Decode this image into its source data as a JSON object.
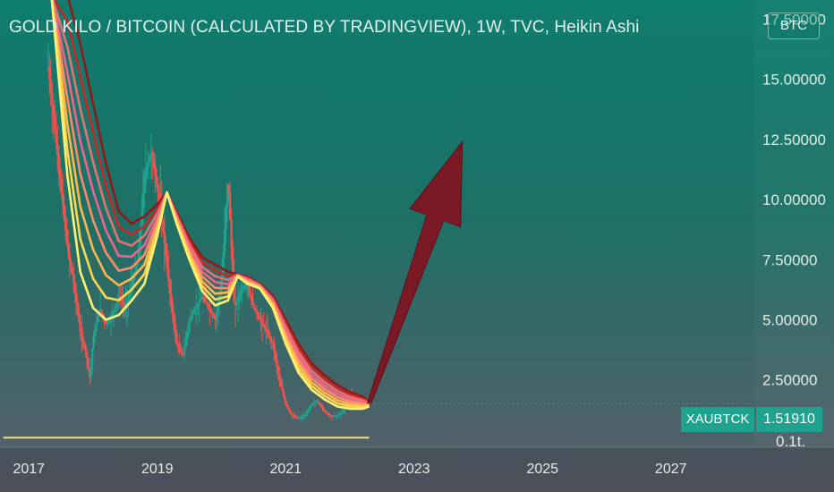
{
  "header": {
    "title": "GOLD KILO / BITCOIN (CALCULATED BY TRADINGVIEW), 1W, TVC, Heikin Ashi",
    "currency": "BTC"
  },
  "price_scale": {
    "symbol": "XAUBTCK",
    "last_price": "1.51910",
    "partial_label": "0.1t."
  },
  "colors": {
    "background_top": "#0f7d6f",
    "background_bottom": "#5d5d6a",
    "up_candle": "#1fa38f",
    "down_candle": "#ef5350",
    "arrow": "#7b1a24",
    "ribbon_fast": "#fff176",
    "ribbon_slow": "#8e1a1a",
    "tag": "#1fa38f"
  },
  "chart_data": {
    "type": "line",
    "style": "heikin-ashi candles with moving-average ribbon",
    "title": "GOLD KILO / BITCOIN (CALCULATED BY TRADINGVIEW), 1W, TVC, Heikin Ashi",
    "xlabel": "",
    "ylabel": "",
    "x_ticks": [
      "2017",
      "2019",
      "2021",
      "2023",
      "2025",
      "2027"
    ],
    "y_ticks": [
      "17.50000",
      "15.00000",
      "12.50000",
      "10.00000",
      "7.50000",
      "5.00000",
      "2.50000"
    ],
    "xlim": [
      2016.55,
      2028.3
    ],
    "ylim": [
      -0.3,
      18.3
    ],
    "grid": false,
    "series": [
      {
        "role": "price",
        "x": [
          2017.3,
          2017.4,
          2017.5,
          2017.6,
          2017.7,
          2017.8,
          2017.9,
          2017.95,
          2018.0,
          2018.1,
          2018.2,
          2018.3,
          2018.4,
          2018.5,
          2018.6,
          2018.7,
          2018.8,
          2018.9,
          2019.0,
          2019.1,
          2019.2,
          2019.3,
          2019.4,
          2019.5,
          2019.6,
          2019.7,
          2019.8,
          2019.9,
          2020.0,
          2020.1,
          2020.2,
          2020.3,
          2020.4,
          2020.5,
          2020.6,
          2020.7,
          2020.8,
          2020.9,
          2021.0,
          2021.1,
          2021.2,
          2021.3,
          2021.4,
          2021.5,
          2021.6,
          2021.7,
          2021.8,
          2021.9,
          2022.0,
          2022.1,
          2022.2,
          2022.3
        ],
        "y": [
          15.5,
          13.0,
          10.5,
          8.0,
          6.5,
          4.5,
          3.5,
          2.5,
          4.2,
          5.5,
          4.8,
          5.2,
          6.0,
          5.5,
          6.5,
          7.5,
          11.0,
          12.0,
          10.5,
          8.5,
          6.0,
          4.0,
          3.5,
          5.0,
          5.5,
          6.0,
          5.5,
          5.0,
          6.5,
          11.0,
          5.5,
          6.2,
          6.5,
          5.5,
          5.0,
          4.5,
          4.0,
          2.5,
          1.5,
          1.0,
          0.9,
          1.0,
          1.5,
          1.6,
          1.2,
          1.0,
          1.0,
          1.2,
          2.0,
          1.7,
          1.6,
          1.5191
        ]
      },
      {
        "role": "ribbon",
        "x": [
          2017.35,
          2017.6,
          2017.8,
          2018.0,
          2018.2,
          2018.4,
          2018.6,
          2018.8,
          2019.0,
          2019.15,
          2019.3,
          2019.5,
          2019.7,
          2019.9,
          2020.1,
          2020.25,
          2020.4,
          2020.6,
          2020.8,
          2021.0,
          2021.2,
          2021.4,
          2021.6,
          2021.8,
          2022.0,
          2022.2,
          2022.3
        ],
        "fast": [
          18.5,
          11.0,
          7.0,
          5.5,
          5.0,
          5.2,
          5.8,
          6.5,
          8.5,
          10.3,
          9.0,
          7.5,
          6.2,
          5.6,
          5.8,
          6.8,
          6.5,
          6.3,
          5.5,
          4.0,
          2.8,
          2.1,
          1.7,
          1.4,
          1.3,
          1.3,
          1.4
        ],
        "slow": [
          18.5,
          18.5,
          16.5,
          14.0,
          11.5,
          9.5,
          9.0,
          9.3,
          9.8,
          10.3,
          9.5,
          8.4,
          7.6,
          7.3,
          7.0,
          6.9,
          6.8,
          6.5,
          6.0,
          5.0,
          4.0,
          3.2,
          2.7,
          2.3,
          2.0,
          1.8,
          1.6
        ]
      },
      {
        "role": "projection-arrow",
        "x": [
          2022.3,
          2023.75
        ],
        "y": [
          1.52,
          12.4
        ]
      }
    ]
  }
}
